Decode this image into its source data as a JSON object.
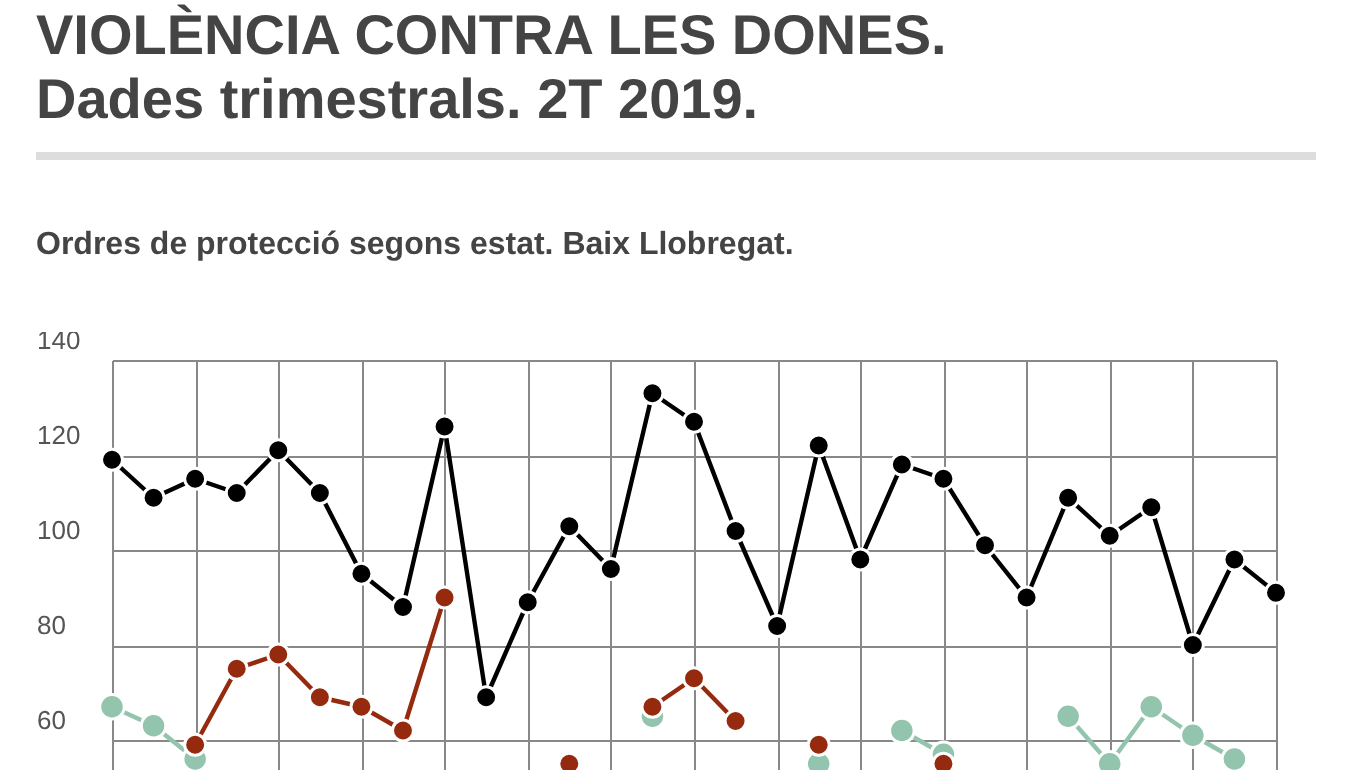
{
  "chart_data": {
    "type": "line",
    "title": "VIOLÈNCIA CONTRA LES DONES.\nDades trimestrals. 2T 2019.",
    "subtitle": "Ordres de protecció segons estat. Baix Llobregat.",
    "categories": [
      null,
      null,
      null,
      null,
      null,
      null,
      null,
      null,
      null,
      null,
      null,
      null,
      null,
      null,
      null,
      null,
      null,
      null,
      null,
      null,
      null,
      null,
      null,
      null,
      null,
      null,
      null,
      null,
      null
    ],
    "series": [
      {
        "color": "#000000",
        "values": [
          119,
          111,
          115,
          112,
          121,
          112,
          95,
          88,
          126,
          69,
          89,
          105,
          96,
          133,
          127,
          104,
          84,
          122,
          98,
          118,
          115,
          101,
          90,
          111,
          103,
          109,
          80,
          98,
          91
        ]
      },
      {
        "color": "#952a0e",
        "values": [
          null,
          null,
          59,
          75,
          78,
          69,
          67,
          62,
          90,
          null,
          null,
          55,
          null,
          67,
          73,
          64,
          null,
          59,
          null,
          null,
          55,
          null,
          null,
          null,
          null,
          null,
          null,
          null,
          null
        ]
      },
      {
        "color": "#93c4ad",
        "values": [
          67,
          63,
          56,
          null,
          null,
          null,
          null,
          null,
          null,
          null,
          null,
          null,
          null,
          65,
          null,
          null,
          null,
          55,
          null,
          62,
          57,
          null,
          null,
          65,
          55,
          67,
          61,
          56,
          null
        ]
      }
    ],
    "ylim": [
      53,
      140
    ],
    "yticks": [
      60,
      80,
      100,
      120,
      140
    ],
    "grid": true,
    "marker": "circle",
    "line_style": "solid",
    "tick_labels": "y"
  }
}
